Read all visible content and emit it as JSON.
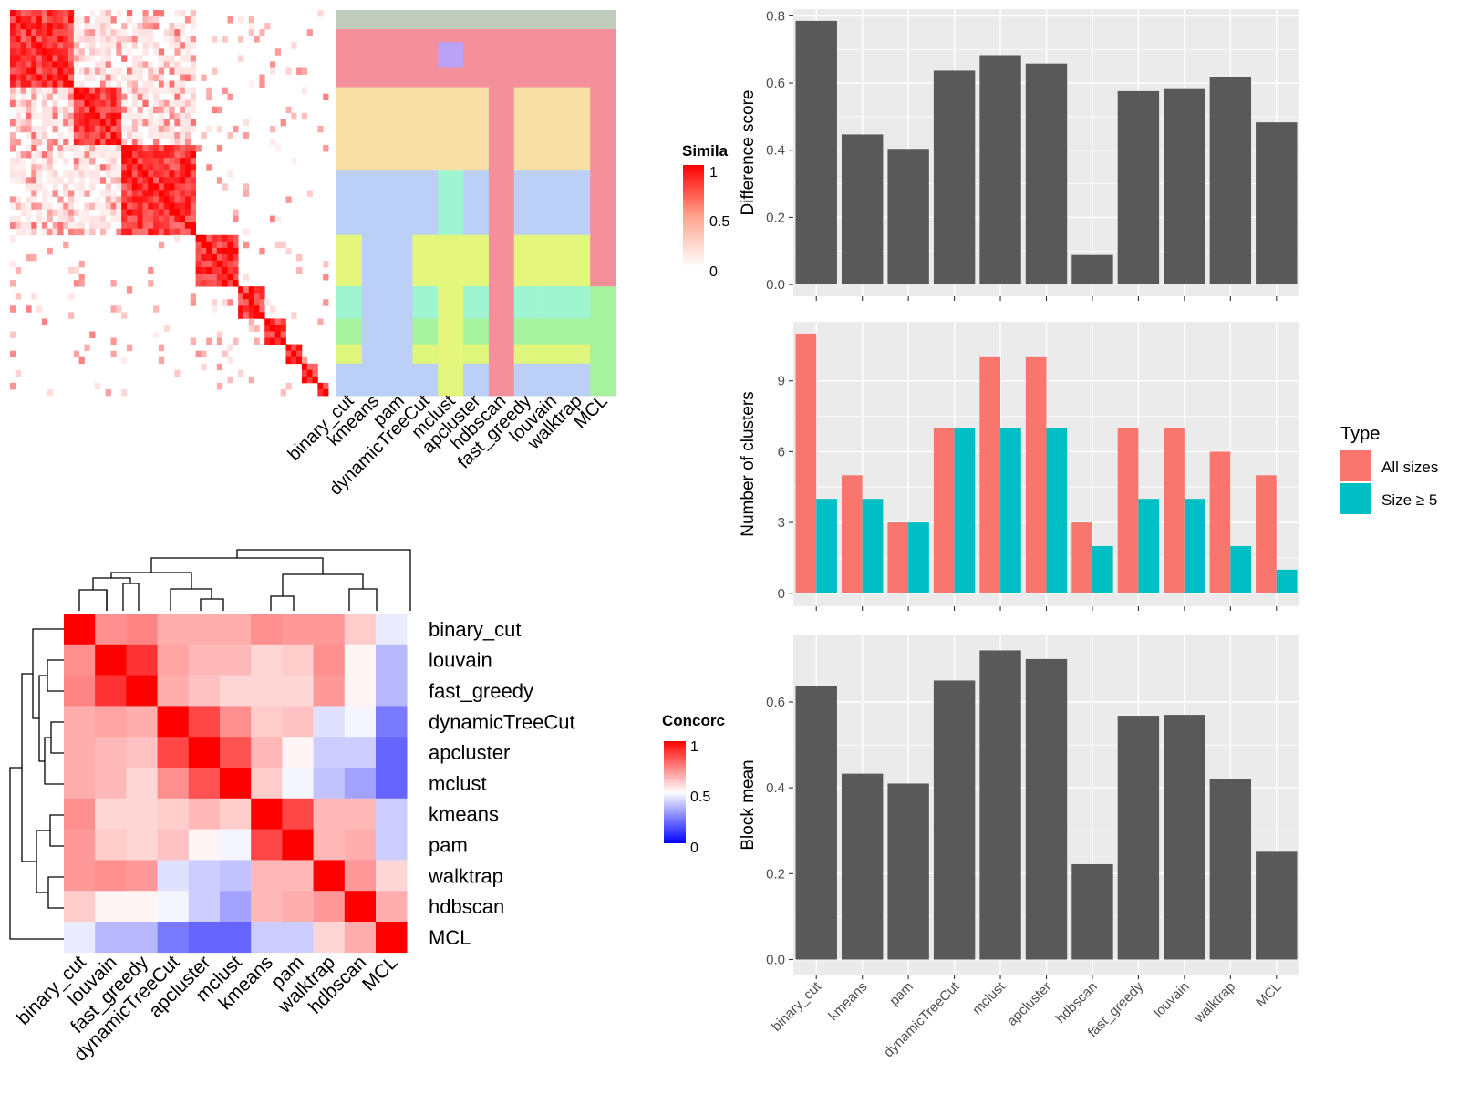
{
  "methods_bar_order": [
    "binary_cut",
    "kmeans",
    "pam",
    "dynamicTreeCut",
    "mclust",
    "apcluster",
    "hdbscan",
    "fast_greedy",
    "louvain",
    "walktrap",
    "MCL"
  ],
  "similarity_panel": {
    "legend_title": "Simila",
    "legend_ticks": [
      "1",
      "0.5",
      "0"
    ],
    "column_labels": [
      "binary_cut",
      "kmeans",
      "pam",
      "dynamicTreeCut",
      "mclust",
      "apcluster",
      "hdbscan",
      "fast_greedy",
      "louvain",
      "walktrap",
      "MCL"
    ],
    "colors": {
      "high": "#ff0000",
      "low": "#ffffff"
    },
    "cluster_palette": [
      "#f4909b",
      "#f7dfa6",
      "#9ff5d2",
      "#f78ce8",
      "#b9a2f7",
      "#bcd0f7",
      "#e4f77c",
      "#a7f29e",
      "#dff57c",
      "#fbe6b8"
    ]
  },
  "concordance_panel": {
    "legend_title": "Concorc",
    "legend_ticks": [
      "1",
      "0.5",
      "0"
    ],
    "row_labels": [
      "binary_cut",
      "louvain",
      "fast_greedy",
      "dynamicTreeCut",
      "apcluster",
      "mclust",
      "kmeans",
      "pam",
      "walktrap",
      "hdbscan",
      "MCL"
    ],
    "col_labels": [
      "binary_cut",
      "louvain",
      "fast_greedy",
      "dynamicTreeCut",
      "apcluster",
      "mclust",
      "kmeans",
      "pam",
      "walktrap",
      "hdbscan",
      "MCL"
    ],
    "colors": {
      "high": "#ff0000",
      "mid": "#ffffff",
      "low": "#0000ff"
    },
    "matrix": [
      [
        1.0,
        0.72,
        0.74,
        0.66,
        0.66,
        0.66,
        0.72,
        0.7,
        0.7,
        0.6,
        0.46
      ],
      [
        0.72,
        1.0,
        0.9,
        0.68,
        0.64,
        0.64,
        0.58,
        0.6,
        0.72,
        0.52,
        0.36
      ],
      [
        0.74,
        0.9,
        1.0,
        0.66,
        0.62,
        0.58,
        0.58,
        0.58,
        0.7,
        0.52,
        0.36
      ],
      [
        0.66,
        0.68,
        0.66,
        1.0,
        0.86,
        0.72,
        0.6,
        0.62,
        0.44,
        0.48,
        0.24
      ],
      [
        0.66,
        0.64,
        0.62,
        0.86,
        1.0,
        0.84,
        0.64,
        0.52,
        0.4,
        0.4,
        0.2
      ],
      [
        0.66,
        0.64,
        0.58,
        0.72,
        0.84,
        1.0,
        0.6,
        0.48,
        0.38,
        0.32,
        0.2
      ],
      [
        0.72,
        0.58,
        0.58,
        0.6,
        0.64,
        0.6,
        1.0,
        0.86,
        0.64,
        0.64,
        0.4
      ],
      [
        0.7,
        0.6,
        0.58,
        0.62,
        0.52,
        0.48,
        0.86,
        1.0,
        0.64,
        0.66,
        0.4
      ],
      [
        0.7,
        0.72,
        0.7,
        0.44,
        0.4,
        0.38,
        0.64,
        0.64,
        1.0,
        0.7,
        0.58
      ],
      [
        0.6,
        0.52,
        0.52,
        0.48,
        0.4,
        0.32,
        0.64,
        0.66,
        0.7,
        1.0,
        0.66
      ],
      [
        0.46,
        0.36,
        0.36,
        0.24,
        0.2,
        0.2,
        0.4,
        0.4,
        0.58,
        0.66,
        1.0
      ]
    ]
  },
  "chart_data": [
    {
      "type": "bar",
      "categories": [
        "binary_cut",
        "kmeans",
        "pam",
        "dynamicTreeCut",
        "mclust",
        "apcluster",
        "hdbscan",
        "fast_greedy",
        "louvain",
        "walktrap",
        "MCL"
      ],
      "values": [
        0.785,
        0.447,
        0.404,
        0.637,
        0.683,
        0.658,
        0.088,
        0.576,
        0.582,
        0.619,
        0.483
      ],
      "title": "",
      "xlabel": "",
      "ylabel": "Difference score",
      "ylim": [
        -0.035,
        0.82
      ],
      "yticks": [
        "0.0",
        "0.2",
        "0.4",
        "0.6",
        "0.8"
      ],
      "color": "#595959",
      "grid": true,
      "show_x_labels": false
    },
    {
      "type": "bar",
      "categories": [
        "binary_cut",
        "kmeans",
        "pam",
        "dynamicTreeCut",
        "mclust",
        "apcluster",
        "hdbscan",
        "fast_greedy",
        "louvain",
        "walktrap",
        "MCL"
      ],
      "series": [
        {
          "name": "All sizes",
          "values": [
            11,
            5,
            3,
            7,
            10,
            10,
            3,
            7,
            7,
            6,
            5
          ],
          "color": "#f8766d"
        },
        {
          "name": "Size ≥ 5",
          "values": [
            4,
            4,
            3,
            7,
            7,
            7,
            2,
            4,
            4,
            2,
            1
          ],
          "color": "#00bfc4"
        }
      ],
      "title": "",
      "xlabel": "",
      "ylabel": "Number of clusters",
      "ylim": [
        -0.55,
        11.5
      ],
      "yticks": [
        "0",
        "3",
        "6",
        "9"
      ],
      "legend": {
        "title": "Type",
        "position": "right"
      },
      "grid": true,
      "show_x_labels": false
    },
    {
      "type": "bar",
      "categories": [
        "binary_cut",
        "kmeans",
        "pam",
        "dynamicTreeCut",
        "mclust",
        "apcluster",
        "hdbscan",
        "fast_greedy",
        "louvain",
        "walktrap",
        "MCL"
      ],
      "values": [
        0.637,
        0.433,
        0.41,
        0.65,
        0.72,
        0.7,
        0.222,
        0.568,
        0.57,
        0.42,
        0.251
      ],
      "title": "",
      "xlabel": "",
      "ylabel": "Block mean",
      "ylim": [
        -0.035,
        0.755
      ],
      "yticks": [
        "0.0",
        "0.2",
        "0.4",
        "0.6"
      ],
      "color": "#595959",
      "grid": true,
      "show_x_labels": true
    }
  ]
}
